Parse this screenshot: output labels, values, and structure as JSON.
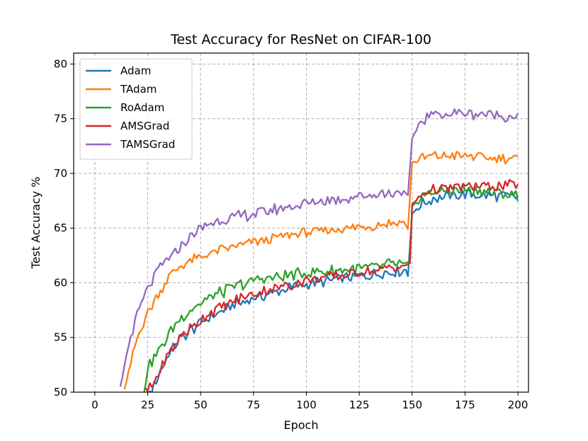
{
  "chart_data": {
    "type": "line",
    "title": "Test Accuracy for ResNet on CIFAR-100",
    "xlabel": "Epoch",
    "ylabel": "Test Accuracy %",
    "xlim": [
      -10,
      205
    ],
    "ylim": [
      50,
      81
    ],
    "xticks": [
      0,
      25,
      50,
      75,
      100,
      125,
      150,
      175,
      200
    ],
    "yticks": [
      50,
      55,
      60,
      65,
      70,
      75,
      80
    ],
    "grid": true,
    "legend_position": "upper-left",
    "x_step": 1,
    "series": [
      {
        "name": "Adam",
        "color": "#1f77b4",
        "keypoints": [
          [
            25,
            49.5
          ],
          [
            30,
            51.5
          ],
          [
            35,
            53.5
          ],
          [
            40,
            54.8
          ],
          [
            50,
            56.3
          ],
          [
            60,
            57.5
          ],
          [
            75,
            58.6
          ],
          [
            100,
            59.9
          ],
          [
            125,
            60.6
          ],
          [
            147,
            61.2
          ],
          [
            148,
            60.6
          ],
          [
            150,
            66.3
          ],
          [
            155,
            67.3
          ],
          [
            160,
            67.7
          ],
          [
            175,
            68.1
          ],
          [
            200,
            67.9
          ]
        ],
        "noise": 0.45
      },
      {
        "name": "TAdam",
        "color": "#ff7f0e",
        "keypoints": [
          [
            14,
            50
          ],
          [
            17,
            52.5
          ],
          [
            20,
            55
          ],
          [
            25,
            57.3
          ],
          [
            30,
            59
          ],
          [
            35,
            60.5
          ],
          [
            40,
            61.5
          ],
          [
            50,
            62.4
          ],
          [
            60,
            63
          ],
          [
            75,
            63.7
          ],
          [
            100,
            64.6
          ],
          [
            125,
            65.1
          ],
          [
            146,
            65.6
          ],
          [
            148,
            64.9
          ],
          [
            150,
            71
          ],
          [
            155,
            71.4
          ],
          [
            160,
            71.6
          ],
          [
            175,
            71.6
          ],
          [
            200,
            71.3
          ]
        ],
        "noise": 0.4
      },
      {
        "name": "RoAdam",
        "color": "#2ca02c",
        "keypoints": [
          [
            23,
            50
          ],
          [
            25,
            52.3
          ],
          [
            30,
            53.6
          ],
          [
            35,
            55.3
          ],
          [
            40,
            56.7
          ],
          [
            50,
            58.2
          ],
          [
            60,
            59.2
          ],
          [
            75,
            60.2
          ],
          [
            100,
            60.9
          ],
          [
            125,
            61.3
          ],
          [
            147,
            61.8
          ],
          [
            149,
            62
          ],
          [
            150,
            67
          ],
          [
            155,
            68
          ],
          [
            160,
            68.3
          ],
          [
            175,
            68.5
          ],
          [
            200,
            68
          ]
        ],
        "noise": 0.5
      },
      {
        "name": "AMSGrad",
        "color": "#d62728",
        "keypoints": [
          [
            24,
            50
          ],
          [
            28,
            50.8
          ],
          [
            32,
            52.5
          ],
          [
            36,
            53.8
          ],
          [
            40,
            55
          ],
          [
            50,
            56.6
          ],
          [
            60,
            57.9
          ],
          [
            75,
            59
          ],
          [
            100,
            60.2
          ],
          [
            125,
            60.9
          ],
          [
            147,
            61.6
          ],
          [
            149,
            61.8
          ],
          [
            150,
            67.2
          ],
          [
            155,
            68.1
          ],
          [
            160,
            68.5
          ],
          [
            175,
            68.8
          ],
          [
            200,
            68.9
          ]
        ],
        "noise": 0.45
      },
      {
        "name": "TAMSGrad",
        "color": "#9467bd",
        "keypoints": [
          [
            12,
            50
          ],
          [
            14,
            52.5
          ],
          [
            17,
            55
          ],
          [
            20,
            57
          ],
          [
            25,
            59.5
          ],
          [
            30,
            61.2
          ],
          [
            35,
            62.2
          ],
          [
            40,
            63.2
          ],
          [
            45,
            64.2
          ],
          [
            50,
            65
          ],
          [
            60,
            65.8
          ],
          [
            75,
            66.3
          ],
          [
            100,
            67.3
          ],
          [
            125,
            67.9
          ],
          [
            146,
            68.4
          ],
          [
            148,
            68
          ],
          [
            150,
            73.2
          ],
          [
            153,
            74.5
          ],
          [
            158,
            75.3
          ],
          [
            165,
            75.5
          ],
          [
            175,
            75.5
          ],
          [
            200,
            75.2
          ]
        ],
        "noise": 0.45
      }
    ]
  }
}
